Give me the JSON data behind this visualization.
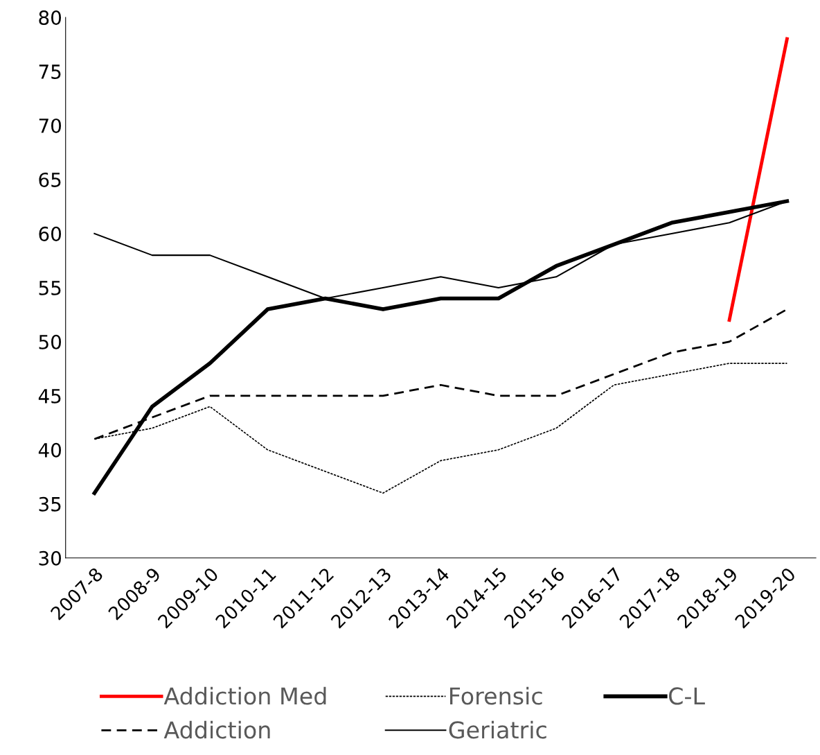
{
  "chart_data": {
    "type": "line",
    "categories": [
      "2007-8",
      "2008-9",
      "2009-10",
      "2010-11",
      "2011-12",
      "2012-13",
      "2013-14",
      "2014-15",
      "2015-16",
      "2016-17",
      "2017-18",
      "2018-19",
      "2019-20"
    ],
    "series": [
      {
        "name": "Addiction Med",
        "color": "#ff0000",
        "line_style": "solid",
        "values": [
          null,
          null,
          null,
          null,
          null,
          null,
          null,
          null,
          null,
          null,
          null,
          52,
          78
        ]
      },
      {
        "name": "Addiction",
        "color": "#000000",
        "line_style": "dashed",
        "values": [
          41,
          43,
          45,
          45,
          45,
          45,
          46,
          45,
          45,
          47,
          49,
          50,
          53
        ]
      },
      {
        "name": "Forensic",
        "color": "#000000",
        "line_style": "dotted",
        "values": [
          41,
          42,
          44,
          40,
          38,
          36,
          39,
          40,
          42,
          46,
          47,
          48,
          48
        ]
      },
      {
        "name": "Geriatric",
        "color": "#000000",
        "line_style": "solid",
        "values": [
          60,
          58,
          58,
          56,
          54,
          55,
          56,
          55,
          56,
          59,
          60,
          61,
          63
        ]
      },
      {
        "name": "C-L",
        "color": "#000000",
        "line_style": "solid",
        "values": [
          36,
          44,
          48,
          53,
          54,
          53,
          54,
          54,
          57,
          59,
          61,
          62,
          63
        ]
      }
    ],
    "ylim": [
      30,
      80
    ],
    "yticks": [
      30,
      35,
      40,
      45,
      50,
      55,
      60,
      65,
      70,
      75,
      80
    ],
    "grid": false,
    "legend": "bottom",
    "marker": "none"
  }
}
